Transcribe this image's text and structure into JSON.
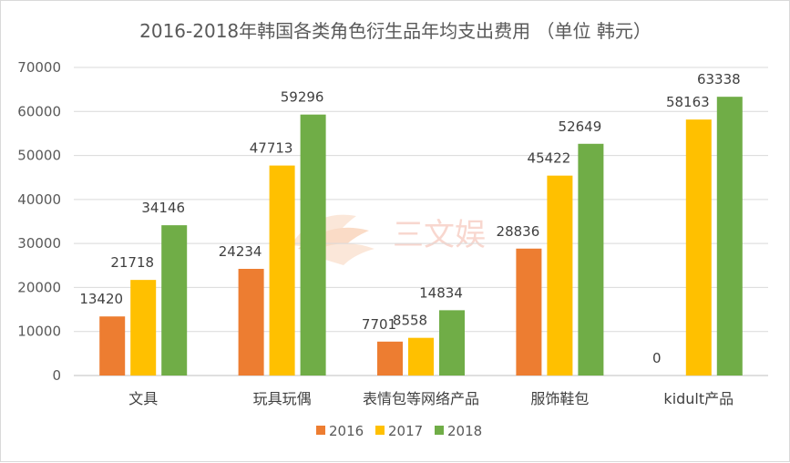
{
  "chart_data": {
    "type": "bar",
    "title": "2016-2018年韩国各类角色衍生品年均支出费用 （单位 韩元）",
    "categories": [
      "文具",
      "玩具玩偶",
      "表情包等网络产品",
      "服饰鞋包",
      "kidult产品"
    ],
    "series": [
      {
        "name": "2016",
        "color": "#ed7d31",
        "values": [
          13420,
          24234,
          7701,
          28836,
          0
        ]
      },
      {
        "name": "2017",
        "color": "#ffc000",
        "values": [
          21718,
          47713,
          8558,
          45422,
          58163
        ]
      },
      {
        "name": "2018",
        "color": "#70ad47",
        "values": [
          34146,
          59296,
          14834,
          52649,
          63338
        ]
      }
    ],
    "ylim": [
      0,
      70000
    ],
    "yticks": [
      0,
      10000,
      20000,
      30000,
      40000,
      50000,
      60000,
      70000
    ],
    "grid": true,
    "legend": "bottom",
    "data_labels": true
  },
  "watermark": {
    "text": "三文娱"
  }
}
